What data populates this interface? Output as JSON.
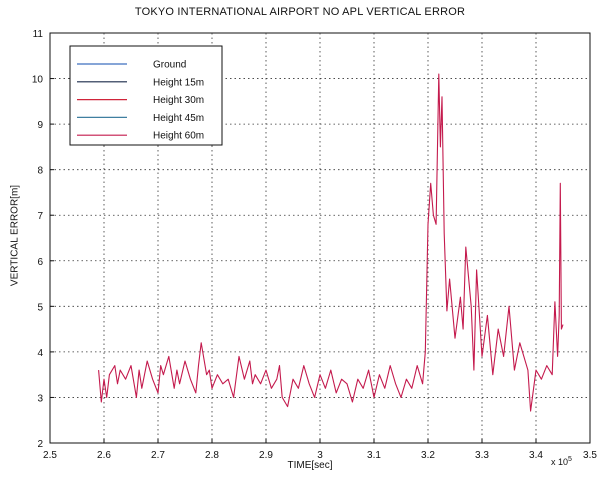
{
  "chart_data": {
    "type": "line",
    "title": "TOKYO INTERNATIONAL AIRPORT NO APL  VERTICAL ERROR",
    "xlabel": "TIME[sec]",
    "ylabel": "VERTICAL ERROR[m]",
    "x_multiplier_label": "x 10",
    "x_multiplier_exponent": "5",
    "xlim": [
      2.5,
      3.5
    ],
    "ylim": [
      2,
      11
    ],
    "xticks": [
      "2.5",
      "2.6",
      "2.7",
      "2.8",
      "2.9",
      "3",
      "3.1",
      "3.2",
      "3.3",
      "3.4",
      "3.5"
    ],
    "yticks": [
      "2",
      "3",
      "4",
      "5",
      "6",
      "7",
      "8",
      "9",
      "10",
      "11"
    ],
    "grid": true,
    "legend_position": "top-left",
    "series": [
      {
        "name": "Ground",
        "color": "#3f6fbf",
        "x": [],
        "y": []
      },
      {
        "name": "Height 15m",
        "color": "#1a2a4a",
        "x": [],
        "y": []
      },
      {
        "name": "Height 30m",
        "color": "#d0243a",
        "x": [],
        "y": []
      },
      {
        "name": "Height 45m",
        "color": "#3f7fa0",
        "x": [],
        "y": []
      },
      {
        "name": "Height 60m",
        "color": "#c41a4d",
        "x": [
          2.59,
          2.595,
          2.6,
          2.605,
          2.61,
          2.62,
          2.625,
          2.63,
          2.64,
          2.65,
          2.66,
          2.665,
          2.67,
          2.675,
          2.68,
          2.69,
          2.7,
          2.705,
          2.71,
          2.72,
          2.73,
          2.735,
          2.74,
          2.75,
          2.76,
          2.77,
          2.775,
          2.78,
          2.79,
          2.795,
          2.8,
          2.81,
          2.82,
          2.83,
          2.84,
          2.85,
          2.86,
          2.87,
          2.875,
          2.88,
          2.89,
          2.9,
          2.91,
          2.92,
          2.925,
          2.93,
          2.94,
          2.95,
          2.96,
          2.97,
          2.98,
          2.99,
          3.0,
          3.01,
          3.02,
          3.03,
          3.04,
          3.05,
          3.06,
          3.07,
          3.08,
          3.09,
          3.1,
          3.11,
          3.12,
          3.13,
          3.14,
          3.15,
          3.16,
          3.17,
          3.18,
          3.19,
          3.195,
          3.2,
          3.205,
          3.21,
          3.215,
          3.22,
          3.223,
          3.226,
          3.23,
          3.235,
          3.24,
          3.25,
          3.26,
          3.265,
          3.27,
          3.28,
          3.285,
          3.29,
          3.3,
          3.31,
          3.32,
          3.33,
          3.34,
          3.35,
          3.36,
          3.37,
          3.38,
          3.385,
          3.39,
          3.4,
          3.41,
          3.42,
          3.43,
          3.435,
          3.44,
          3.443,
          3.445,
          3.447,
          3.45
        ],
        "y": [
          3.6,
          2.9,
          3.4,
          3.0,
          3.5,
          3.7,
          3.3,
          3.6,
          3.4,
          3.7,
          3.0,
          3.6,
          3.2,
          3.5,
          3.8,
          3.4,
          3.1,
          3.7,
          3.5,
          3.9,
          3.2,
          3.6,
          3.3,
          3.8,
          3.4,
          3.1,
          3.7,
          4.2,
          3.5,
          3.6,
          3.2,
          3.5,
          3.3,
          3.4,
          3.0,
          3.9,
          3.4,
          3.8,
          3.3,
          3.5,
          3.3,
          3.6,
          3.2,
          3.4,
          3.7,
          3.0,
          2.8,
          3.4,
          3.2,
          3.7,
          3.3,
          3.0,
          3.5,
          3.2,
          3.6,
          3.1,
          3.4,
          3.3,
          2.9,
          3.4,
          3.2,
          3.6,
          3.0,
          3.5,
          3.2,
          3.7,
          3.3,
          3.0,
          3.4,
          3.2,
          3.7,
          3.3,
          4.0,
          6.8,
          7.7,
          7.0,
          6.8,
          10.1,
          8.5,
          9.6,
          6.6,
          4.9,
          5.6,
          4.3,
          5.2,
          4.5,
          6.3,
          5.0,
          3.6,
          5.8,
          3.9,
          4.8,
          3.5,
          4.5,
          3.9,
          5.0,
          3.6,
          4.2,
          3.8,
          3.6,
          2.7,
          3.6,
          3.4,
          3.7,
          3.5,
          5.1,
          3.9,
          4.8,
          7.7,
          4.5,
          4.6
        ]
      }
    ]
  }
}
